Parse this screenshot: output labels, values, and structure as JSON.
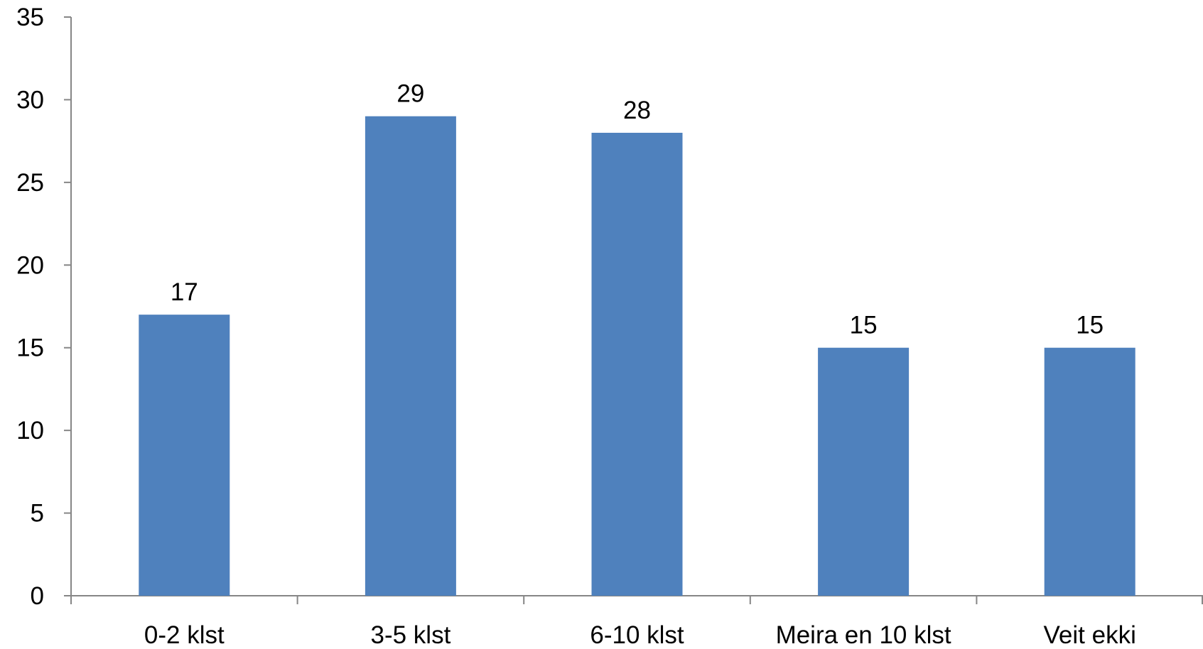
{
  "chart_data": {
    "type": "bar",
    "title": "",
    "xlabel": "",
    "ylabel": "",
    "categories": [
      "0-2 klst",
      "3-5 klst",
      "6-10 klst",
      "Meira en 10 klst",
      "Veit ekki"
    ],
    "values": [
      17,
      29,
      28,
      15,
      15
    ],
    "data_labels": [
      "17",
      "29",
      "28",
      "15",
      "15"
    ],
    "ylim": [
      0,
      35
    ],
    "yticks": [
      0,
      5,
      10,
      15,
      20,
      25,
      30,
      35
    ],
    "ytick_labels": [
      "0",
      "5",
      "10",
      "15",
      "20",
      "25",
      "30",
      "35"
    ],
    "grid": false,
    "legend": "none",
    "bar_color": "#4F81BD",
    "axis_color": "#868686"
  }
}
